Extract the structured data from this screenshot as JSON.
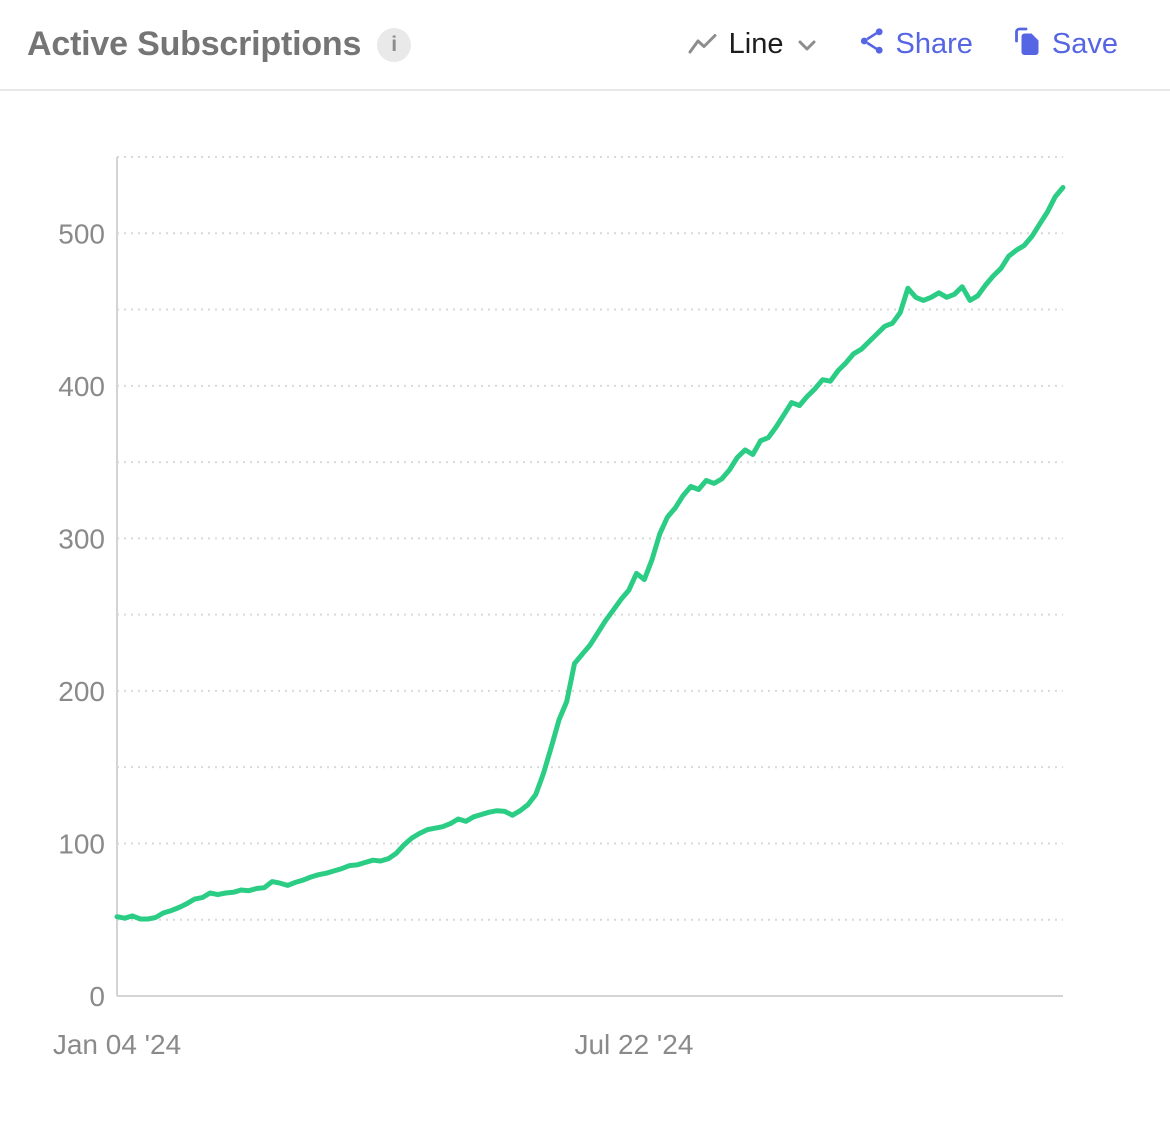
{
  "header": {
    "title": "Active Subscriptions",
    "info_glyph": "i",
    "chart_type_label": "Line",
    "share_label": "Share",
    "save_label": "Save",
    "accent_color": "#5565e4",
    "title_color": "#757575"
  },
  "chart_data": {
    "type": "line",
    "title": "Active Subscriptions",
    "grid": "dotted-horizontal",
    "legend": "none",
    "x_axis": {
      "unit": "days since Jan 04 '24",
      "range": [
        0,
        366
      ],
      "tick_labels": [
        {
          "label": "Jan 04 '24",
          "day": 0
        },
        {
          "label": "Jul 22 '24",
          "day": 200
        }
      ]
    },
    "y_axis": {
      "ticks": [
        0,
        100,
        200,
        300,
        400,
        500
      ],
      "grid_step": 50,
      "range": [
        0,
        550
      ]
    },
    "series": [
      {
        "name": "Active Subscriptions",
        "color": "#2bcd85",
        "points": [
          [
            0,
            52
          ],
          [
            3,
            51
          ],
          [
            6,
            52.5
          ],
          [
            9,
            50.5
          ],
          [
            12,
            50.5
          ],
          [
            15,
            51.5
          ],
          [
            18,
            54.5
          ],
          [
            21,
            56
          ],
          [
            24,
            58
          ],
          [
            27,
            60.5
          ],
          [
            30,
            63.5
          ],
          [
            33,
            64.5
          ],
          [
            36,
            67.5
          ],
          [
            39,
            66.5
          ],
          [
            42,
            67.5
          ],
          [
            45,
            68
          ],
          [
            48,
            69.5
          ],
          [
            51,
            69
          ],
          [
            54,
            70.5
          ],
          [
            57,
            71
          ],
          [
            60,
            75
          ],
          [
            63,
            74
          ],
          [
            66,
            72.5
          ],
          [
            69,
            74.5
          ],
          [
            72,
            76
          ],
          [
            75,
            78
          ],
          [
            78,
            79.5
          ],
          [
            81,
            80.5
          ],
          [
            84,
            82
          ],
          [
            87,
            83.5
          ],
          [
            90,
            85.5
          ],
          [
            93,
            86
          ],
          [
            96,
            87.5
          ],
          [
            99,
            89
          ],
          [
            102,
            88.5
          ],
          [
            105,
            90
          ],
          [
            108,
            93.5
          ],
          [
            111,
            99
          ],
          [
            114,
            103.5
          ],
          [
            117,
            106.5
          ],
          [
            120,
            109
          ],
          [
            123,
            110
          ],
          [
            126,
            111
          ],
          [
            129,
            113
          ],
          [
            132,
            116
          ],
          [
            135,
            114.5
          ],
          [
            138,
            117.5
          ],
          [
            141,
            119
          ],
          [
            144,
            120.5
          ],
          [
            147,
            121.5
          ],
          [
            150,
            121
          ],
          [
            153,
            118.5
          ],
          [
            156,
            121.5
          ],
          [
            159,
            125.5
          ],
          [
            162,
            132
          ],
          [
            165,
            146
          ],
          [
            168,
            163
          ],
          [
            171,
            181
          ],
          [
            174,
            193
          ],
          [
            177,
            218
          ],
          [
            180,
            224
          ],
          [
            183,
            230
          ],
          [
            186,
            238
          ],
          [
            189,
            246
          ],
          [
            192,
            253
          ],
          [
            195,
            260
          ],
          [
            198,
            266
          ],
          [
            201,
            277
          ],
          [
            204,
            273
          ],
          [
            207,
            286
          ],
          [
            210,
            303
          ],
          [
            213,
            314
          ],
          [
            216,
            320
          ],
          [
            219,
            328
          ],
          [
            222,
            334
          ],
          [
            225,
            332
          ],
          [
            228,
            338
          ],
          [
            231,
            336
          ],
          [
            234,
            339
          ],
          [
            237,
            345
          ],
          [
            240,
            353
          ],
          [
            243,
            358
          ],
          [
            246,
            355
          ],
          [
            249,
            364
          ],
          [
            252,
            366
          ],
          [
            255,
            373
          ],
          [
            258,
            381
          ],
          [
            261,
            389
          ],
          [
            264,
            387
          ],
          [
            267,
            393
          ],
          [
            270,
            398
          ],
          [
            273,
            404
          ],
          [
            276,
            403
          ],
          [
            279,
            410
          ],
          [
            282,
            415
          ],
          [
            285,
            421
          ],
          [
            288,
            424
          ],
          [
            291,
            429
          ],
          [
            294,
            434
          ],
          [
            297,
            439
          ],
          [
            300,
            441
          ],
          [
            303,
            448
          ],
          [
            306,
            464
          ],
          [
            309,
            458
          ],
          [
            312,
            456
          ],
          [
            315,
            458
          ],
          [
            318,
            461
          ],
          [
            321,
            458
          ],
          [
            324,
            460
          ],
          [
            327,
            465
          ],
          [
            330,
            456
          ],
          [
            333,
            459
          ],
          [
            336,
            466
          ],
          [
            339,
            472
          ],
          [
            342,
            477
          ],
          [
            345,
            485
          ],
          [
            348,
            489
          ],
          [
            351,
            492
          ],
          [
            354,
            498
          ],
          [
            357,
            506
          ],
          [
            360,
            514
          ],
          [
            363,
            524
          ],
          [
            366,
            530
          ]
        ]
      }
    ]
  }
}
